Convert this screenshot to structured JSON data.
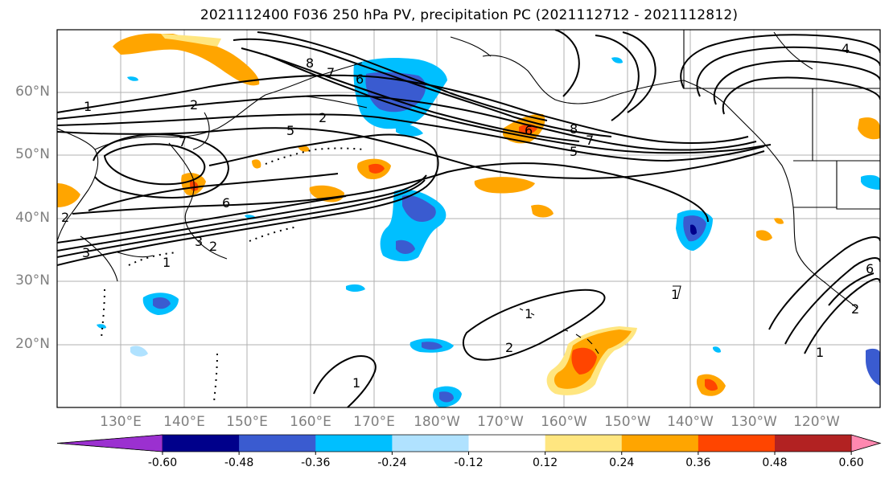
{
  "title": "2021112400 F036 250 hPa PV, precipitation PC (2021112712 - 2021112812)",
  "map": {
    "lat_labels": [
      "60°N",
      "50°N",
      "40°N",
      "30°N",
      "20°N"
    ],
    "lon_labels": [
      "130°E",
      "140°E",
      "150°E",
      "160°E",
      "170°E",
      "180°W",
      "170°W",
      "160°W",
      "150°W",
      "140°W",
      "130°W",
      "120°W"
    ],
    "extent": {
      "lon_min": 120,
      "lon_max": 250,
      "lat_min": 10,
      "lat_max": 70
    },
    "gridlines": true,
    "pv_contour_labels": [
      "1",
      "2",
      "3",
      "4",
      "5",
      "6",
      "7",
      "8"
    ],
    "contour_color": "#000000",
    "coastline_color": "#000000"
  },
  "colorbar": {
    "levels": [
      "-0.60",
      "-0.48",
      "-0.36",
      "-0.24",
      "-0.12",
      "0.12",
      "0.24",
      "0.36",
      "0.48",
      "0.60"
    ],
    "colors": [
      "#9b30d0",
      "#00008b",
      "#3a5bd0",
      "#00bfff",
      "#b0e2ff",
      "#ffffff",
      "#ffe680",
      "#ffa500",
      "#ff4500",
      "#b22222",
      "#ff88b0"
    ],
    "extend": "both"
  }
}
